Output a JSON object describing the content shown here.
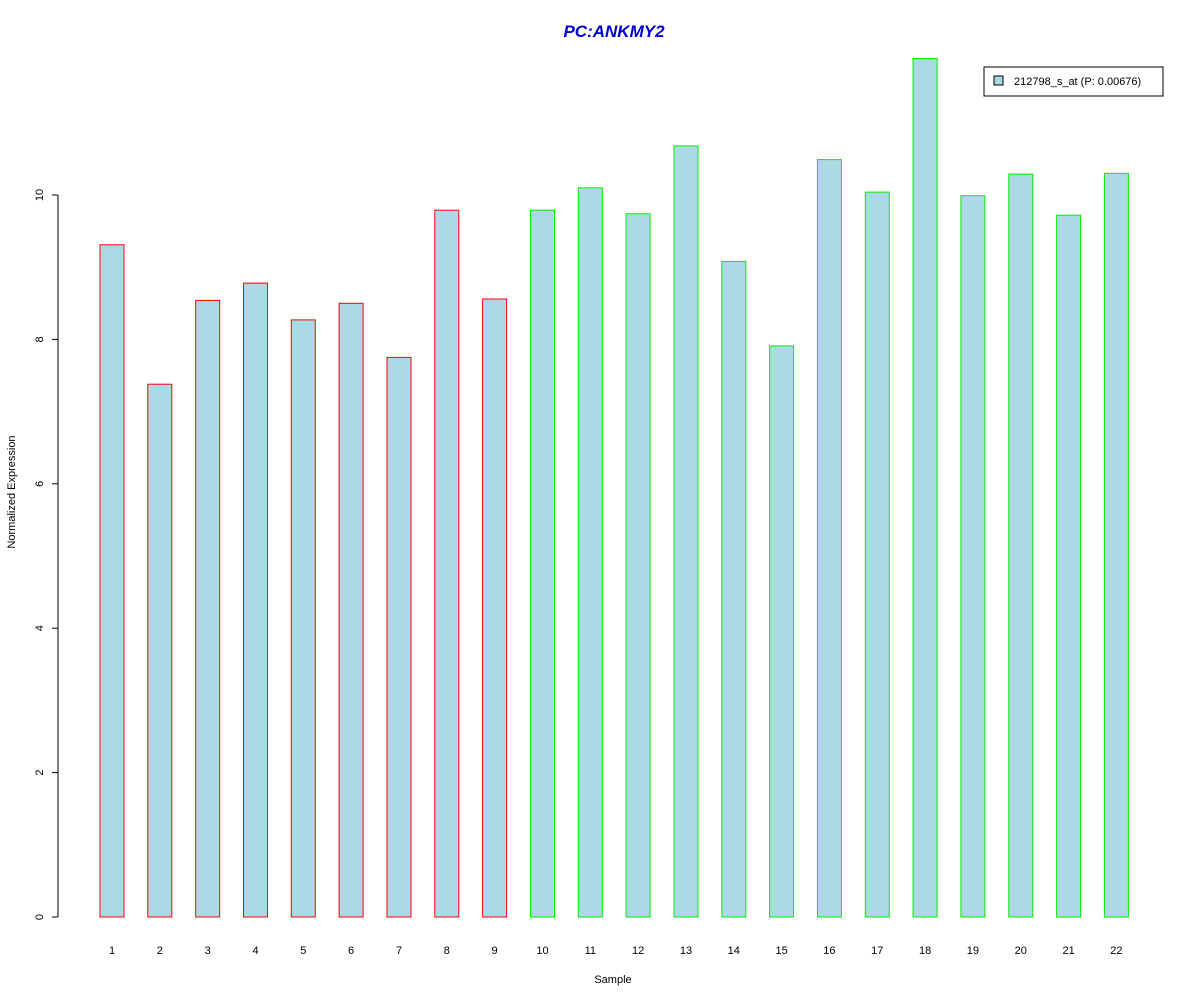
{
  "chart_data": {
    "type": "bar",
    "title": "PC:ANKMY2",
    "xlabel": "Sample",
    "ylabel": "Normalized Expression",
    "categories": [
      "1",
      "2",
      "3",
      "4",
      "5",
      "6",
      "7",
      "8",
      "9",
      "10",
      "11",
      "12",
      "13",
      "14",
      "15",
      "16",
      "17",
      "18",
      "19",
      "20",
      "21",
      "22"
    ],
    "values": [
      9.31,
      7.38,
      8.54,
      8.78,
      8.27,
      8.5,
      7.75,
      9.79,
      8.56,
      9.79,
      10.1,
      9.74,
      10.68,
      9.08,
      7.91,
      10.49,
      10.04,
      11.89,
      9.99,
      10.29,
      9.72,
      10.3
    ],
    "groups": [
      "red",
      "red",
      "red",
      "red",
      "red",
      "red",
      "red",
      "red",
      "red",
      "green",
      "green",
      "green",
      "green",
      "green",
      "green",
      "green",
      "green",
      "green",
      "green",
      "green",
      "green",
      "green"
    ],
    "ylim": [
      0,
      12
    ],
    "yticks": [
      0,
      2,
      4,
      6,
      8,
      10
    ],
    "grid": false,
    "legend": {
      "position": "top-right",
      "entries": [
        {
          "label": "212798_s_at (P: 0.00676)"
        }
      ]
    },
    "colors": {
      "title": "#0000cc",
      "bar_fill": "#add8e6",
      "group1_border": "#ff0000",
      "group2_border": "#00ee00",
      "axis": "#000000"
    }
  }
}
